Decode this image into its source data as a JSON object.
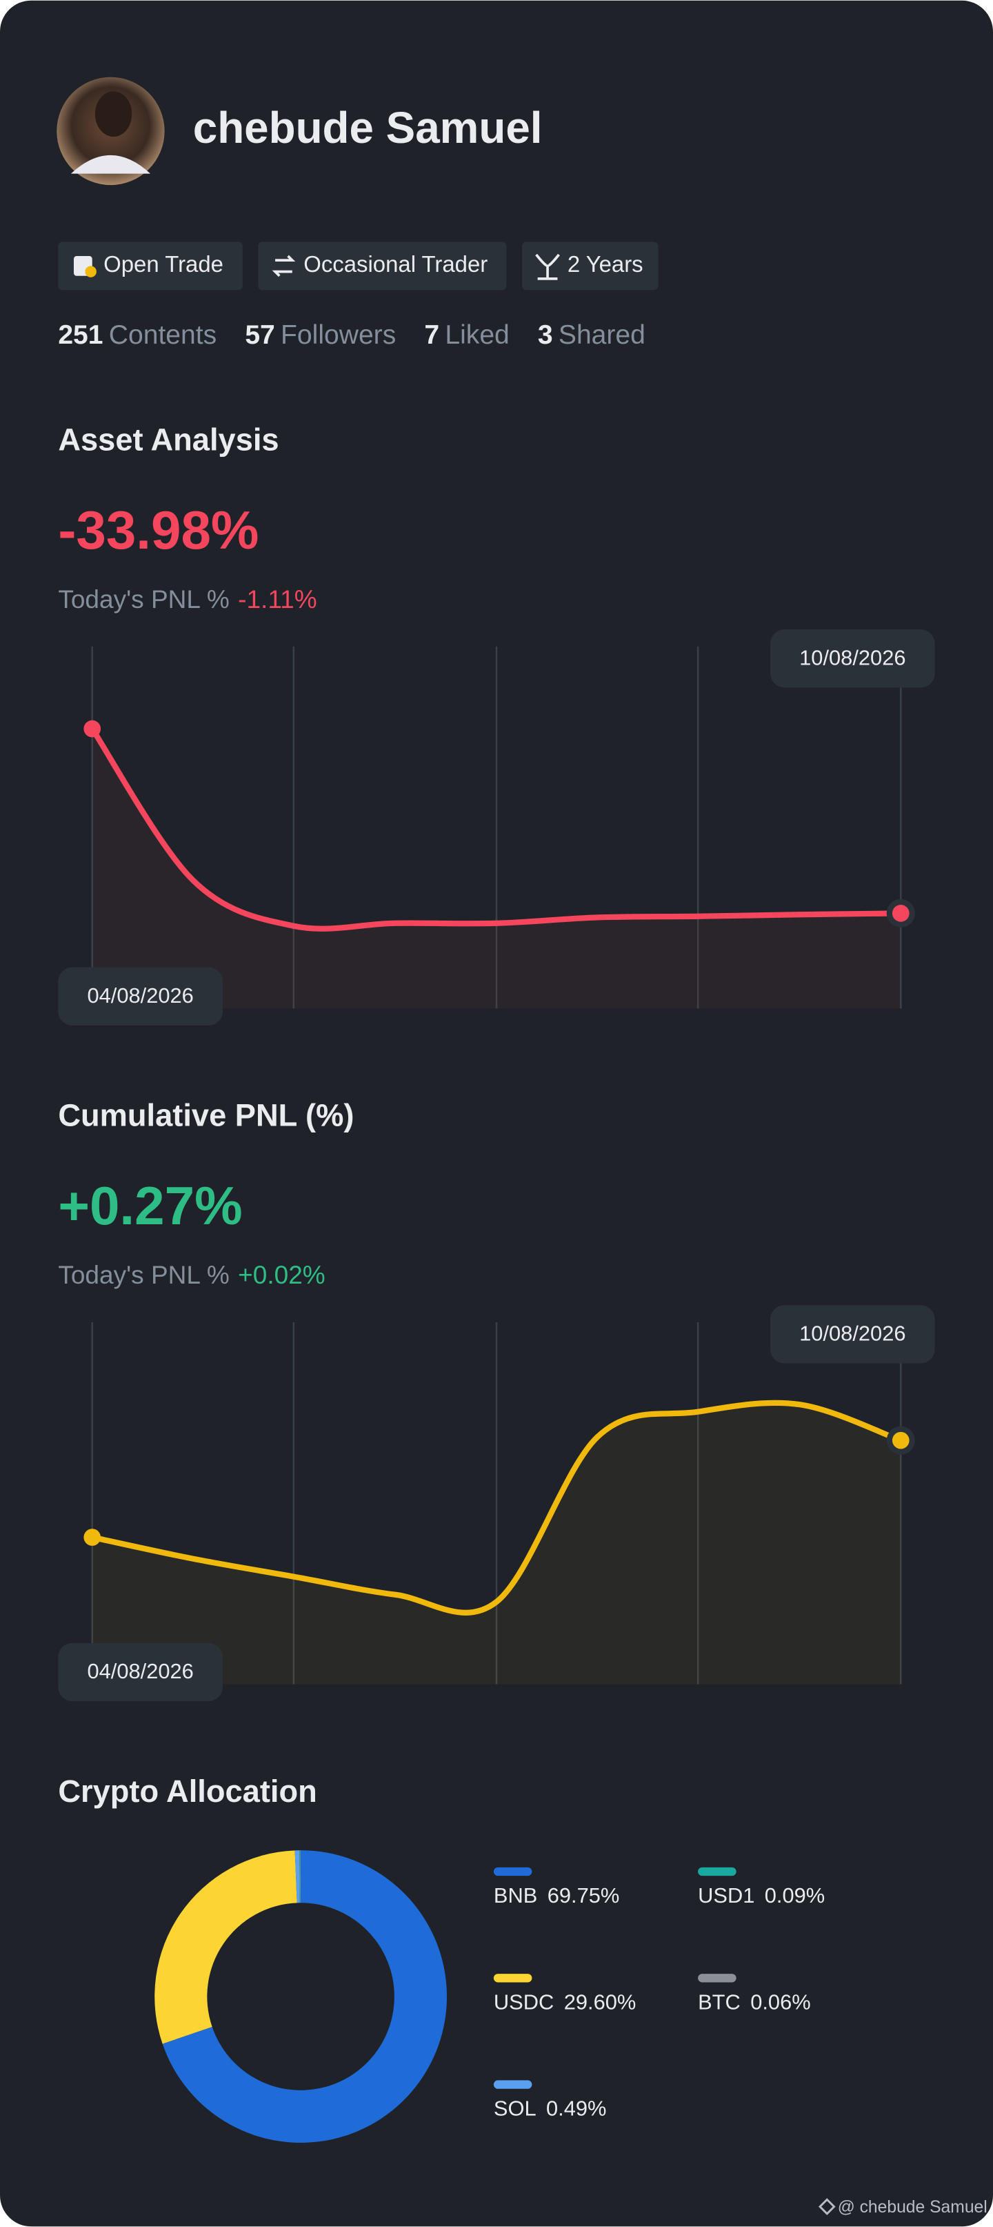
{
  "profile": {
    "name": "chebude Samuel",
    "tags": [
      "Open Trade",
      "Occasional Trader",
      "2 Years"
    ],
    "stats": [
      {
        "value": 251,
        "label": "Contents"
      },
      {
        "value": 57,
        "label": "Followers"
      },
      {
        "value": 7,
        "label": "Liked"
      },
      {
        "value": 3,
        "label": "Shared"
      }
    ]
  },
  "chart_data": [
    {
      "type": "line",
      "title": "Asset Analysis",
      "headline": "-33.98%",
      "today_label": "Today's PNL %",
      "today_value": "-1.11%",
      "x": [
        "04/08/2026",
        null,
        null,
        null,
        null,
        null,
        null,
        null,
        "10/08/2026"
      ],
      "values": [
        -2,
        -28.3,
        -36.2,
        -35.7,
        -35.7,
        -34.7,
        -34.5,
        -34.2,
        -33.98
      ],
      "color": "#f6465d"
    },
    {
      "type": "line",
      "title": "Cumulative PNL (%)",
      "headline": "+0.27%",
      "today_label": "Today's PNL %",
      "today_value": "+0.02%",
      "x": [
        "04/08/2026",
        null,
        null,
        null,
        null,
        null,
        null,
        null,
        "10/08/2026"
      ],
      "values": [
        0,
        -0.06,
        -0.11,
        -0.16,
        -0.18,
        0.28,
        0.35,
        0.37,
        0.27
      ],
      "color": "#f0b90b"
    },
    {
      "type": "pie",
      "title": "Crypto Allocation",
      "categories": [
        "BNB",
        "USDC",
        "SOL",
        "USD1",
        "BTC"
      ],
      "values": [
        69.75,
        29.6,
        0.49,
        0.09,
        0.06
      ],
      "value_labels": [
        "69.75%",
        "29.60%",
        "0.49%",
        "0.09%",
        "0.06%"
      ],
      "colors": [
        "#1f6bd8",
        "#fcd535",
        "#5aa0f0",
        "#1aa9a0",
        "#8a8f98"
      ]
    }
  ],
  "watermark": "@ chebude Samuel"
}
